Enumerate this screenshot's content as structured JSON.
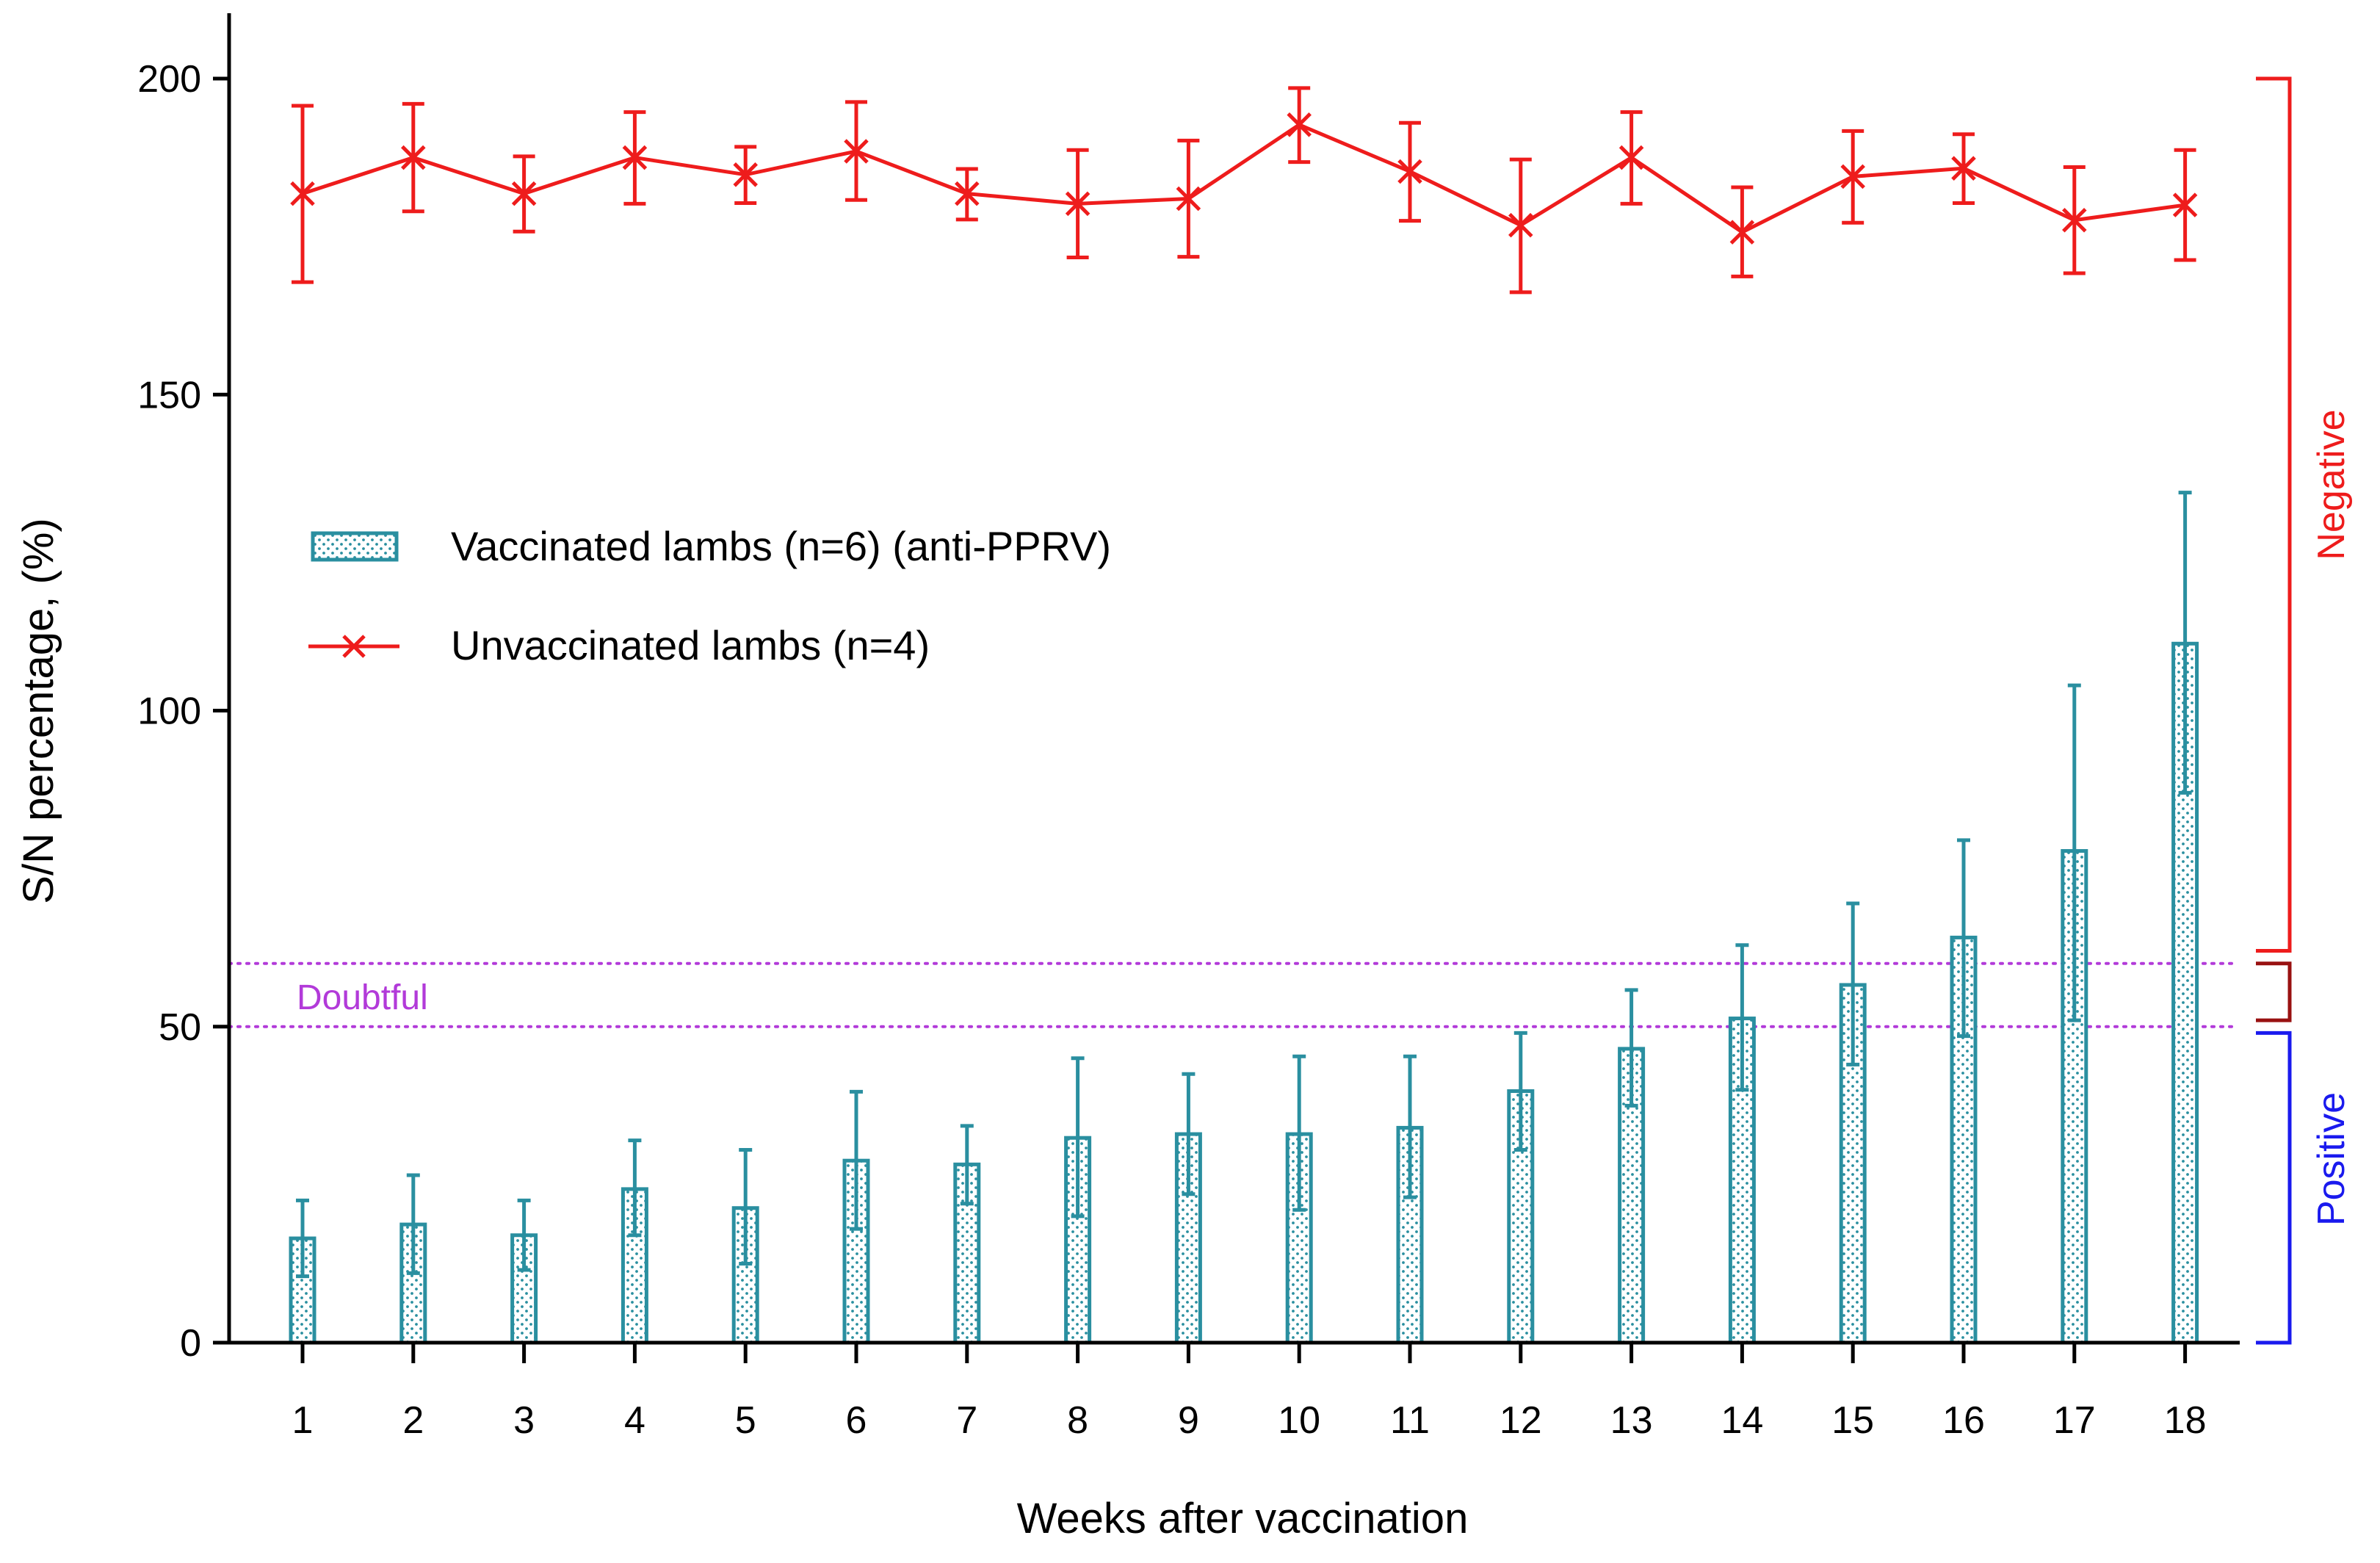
{
  "chart_data": {
    "type": "bar",
    "title": "",
    "xlabel": "Weeks after vaccination",
    "ylabel": "S/N percentage, (%)",
    "ylim": [
      0,
      210
    ],
    "yticks": [
      0,
      50,
      100,
      150,
      200
    ],
    "categories": [
      "1",
      "2",
      "3",
      "4",
      "5",
      "6",
      "7",
      "8",
      "9",
      "10",
      "11",
      "12",
      "13",
      "14",
      "15",
      "16",
      "17",
      "18"
    ],
    "series": [
      {
        "name": "Vaccinated lambs (n=6) (anti-PPRV)",
        "type": "bar",
        "pattern": "dotted",
        "values": [
          16.5,
          18.7,
          17.0,
          24.3,
          21.3,
          28.8,
          28.2,
          32.4,
          33.0,
          33.0,
          34.0,
          39.8,
          46.5,
          51.3,
          56.6,
          64.1,
          77.8,
          110.6
        ],
        "error_upper": [
          22.5,
          26.5,
          22.5,
          32.0,
          30.5,
          39.7,
          34.3,
          45.0,
          42.5,
          45.3,
          45.3,
          49.0,
          55.8,
          62.9,
          69.5,
          79.5,
          104.0,
          134.5
        ],
        "error_lower": [
          10.5,
          11.0,
          11.5,
          17.0,
          12.5,
          18.0,
          22.0,
          20.0,
          23.5,
          21.0,
          23.0,
          30.5,
          37.5,
          40.0,
          44.0,
          48.5,
          51.0,
          87.0
        ]
      },
      {
        "name": "Unvaccinated lambs (n=4)",
        "type": "line",
        "marker": "x",
        "values": [
          181.8,
          187.5,
          181.8,
          187.5,
          184.8,
          188.5,
          181.8,
          180.2,
          181.0,
          192.7,
          185.3,
          176.8,
          187.5,
          175.7,
          184.5,
          185.8,
          177.6,
          180.0
        ],
        "error_upper": [
          195.7,
          196.0,
          187.7,
          194.7,
          189.2,
          196.3,
          185.7,
          188.7,
          190.2,
          198.5,
          193.0,
          187.2,
          194.7,
          182.8,
          191.7,
          191.2,
          186.0,
          188.7
        ],
        "error_lower": [
          167.8,
          179.0,
          175.8,
          180.2,
          180.3,
          180.8,
          177.7,
          171.7,
          171.8,
          186.8,
          177.5,
          166.2,
          180.2,
          168.7,
          177.2,
          180.3,
          169.2,
          171.3
        ]
      }
    ],
    "threshold_lines": [
      {
        "value": 60,
        "style": "dotted"
      },
      {
        "value": 50,
        "style": "dotted"
      }
    ],
    "annotations": {
      "doubtful": "Doubtful",
      "negative": "Negative",
      "positive": "Positive"
    },
    "brackets": {
      "negative": [
        62,
        200
      ],
      "doubtful": [
        51,
        60
      ],
      "positive": [
        0,
        49
      ]
    },
    "legend_position": "upper-left"
  },
  "colors": {
    "bar": "#2a8fa0",
    "line": "#ee1c1c",
    "threshold": "#b23ad9",
    "doubtful_text": "#b23ad9",
    "negative": "#ee1c1c",
    "doubtful_bracket": "#991111",
    "positive": "#1a1aee",
    "axis": "#000000"
  }
}
